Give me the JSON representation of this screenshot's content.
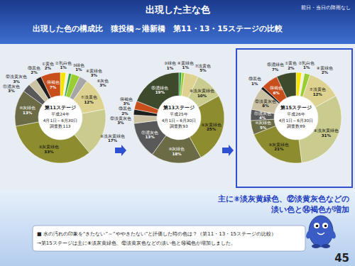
{
  "header": {
    "title": "出現した主な色",
    "subtitle": "出現した色の構成比　猿投橋～港新橋　第11・13・15ステージの比較",
    "note": "前日・当日の降雨なし"
  },
  "chart_data": [
    {
      "type": "donut",
      "title": "第11ステージ",
      "subtitle": [
        "平成24年",
        "4月1日～6月30日",
        "調査数113"
      ],
      "categories": [
        "①黄色",
        "②乳白色",
        "③緑色",
        "④黄緑色",
        "⑥灰色",
        "⑦淡黄色",
        "⑧淡灰黄緑色",
        "⑨灰黄緑色",
        "⑩灰緑色",
        "⑪濃灰色",
        "⑫淡黄灰色",
        "⑬黒色",
        "⑭褐色"
      ],
      "values": [
        2,
        1,
        1,
        3,
        3,
        12,
        17,
        33,
        13,
        3,
        3,
        2,
        7
      ],
      "value_labels": [
        "2%",
        "1%",
        "1%",
        "3%",
        "3%",
        "12%",
        "17%",
        "33%",
        "13%",
        "3%",
        "3%",
        "2%",
        "7%"
      ],
      "colors": [
        "#f5e400",
        "#f4f0dc",
        "#2f9e44",
        "#9acd32",
        "#a6a6a6",
        "#ddd28f",
        "#c9cc8e",
        "#8d8c2f",
        "#6b6b45",
        "#595959",
        "#cbc2a4",
        "#1e1e1e",
        "#c84f1c"
      ],
      "data_labels": true
    },
    {
      "type": "donut",
      "title": "第13ステージ",
      "subtitle": [
        "平成25年",
        "4月1日～6月30日",
        "調査数93"
      ],
      "categories": [
        "③緑色",
        "④黄緑色",
        "⑦淡黄色",
        "⑧淡灰黄緑色",
        "⑨灰黄緑色",
        "⑩灰緑色",
        "⑪濃灰色",
        "⑫淡黄灰色",
        "⑬黒色",
        "⑭褐色",
        "⑮濃緑色"
      ],
      "values": [
        1,
        1,
        5,
        10,
        25,
        18,
        13,
        3,
        2,
        3,
        19
      ],
      "value_labels": [
        "1%",
        "1%",
        "5%",
        "10%",
        "25%",
        "18%",
        "13%",
        "3%",
        "2%",
        "3%",
        "19%"
      ],
      "colors": [
        "#2f9e44",
        "#9acd32",
        "#ddd28f",
        "#c9cc8e",
        "#8d8c2f",
        "#6b6b45",
        "#595959",
        "#cbc2a4",
        "#1e1e1e",
        "#c84f1c",
        "#3d4a2b"
      ],
      "data_labels": true
    },
    {
      "type": "donut",
      "title": "第15ステージ",
      "subtitle": [
        "平成26年",
        "4月1日～6月30日",
        "調査数89"
      ],
      "categories": [
        "①黄色",
        "②乳白色",
        "④黄緑色",
        "⑦淡黄色",
        "⑧淡灰黄緑色",
        "⑨灰黄緑色",
        "⑩灰緑色",
        "⑪濃灰色",
        "⑫淡黄灰色",
        "⑬黒色",
        "⑭褐色",
        "⑮濃緑色"
      ],
      "values": [
        2,
        1,
        2,
        12,
        31,
        21,
        5,
        4,
        8,
        1,
        6,
        7
      ],
      "value_labels": [
        "2%",
        "1%",
        "2%",
        "12%",
        "31%",
        "21%",
        "5%",
        "4%",
        "8%",
        "1%",
        "6%",
        "7%"
      ],
      "colors": [
        "#f5e400",
        "#f4f0dc",
        "#9acd32",
        "#ddd28f",
        "#c9cc8e",
        "#8d8c2f",
        "#6b6b45",
        "#595959",
        "#cbc2a4",
        "#1e1e1e",
        "#c84f1c",
        "#3d4a2b"
      ],
      "data_labels": true
    }
  ],
  "callout": [
    "主に⑧淡灰黄緑色、⑫淡黄灰色などの",
    "淡い色と⑭褐色が増加"
  ],
  "note_box": [
    "■ 水の汚れの印象を“きたない”～“ややきたない”と評価した時の色は？（第11・13・15ステージの比較）",
    "→第15ステージは主に⑧淡灰黄緑色、⑫淡黄灰色などの淡い色と⑭褐色が増加しました。"
  ],
  "page_number": "45"
}
